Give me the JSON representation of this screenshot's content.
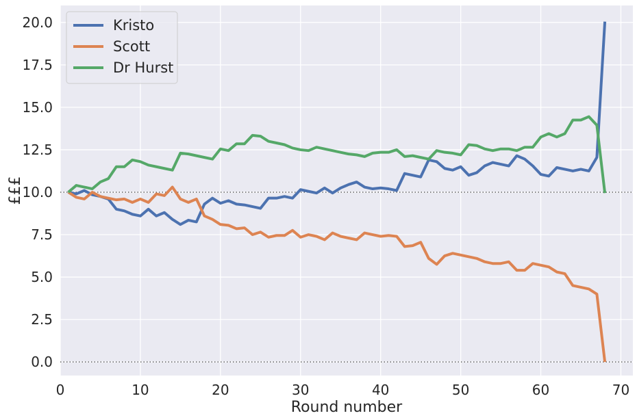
{
  "chart_data": {
    "type": "line",
    "title": "",
    "xlabel": "Round number",
    "ylabel": "£££",
    "xlim": [
      0,
      71.5
    ],
    "ylim": [
      -0.8,
      21
    ],
    "xticks": [
      0,
      10,
      20,
      30,
      40,
      50,
      60,
      70
    ],
    "yticks": [
      0.0,
      2.5,
      5.0,
      7.5,
      10.0,
      12.5,
      15.0,
      17.5,
      20.0
    ],
    "ytick_labels": [
      "0.0",
      "2.5",
      "5.0",
      "7.5",
      "10.0",
      "12.5",
      "15.0",
      "17.5",
      "20.0"
    ],
    "reference_lines": [
      0,
      10
    ],
    "grid": true,
    "background": "#eaeaf2",
    "legend_position": "top-left",
    "x": [
      1,
      2,
      3,
      4,
      5,
      6,
      7,
      8,
      9,
      10,
      11,
      12,
      13,
      14,
      15,
      16,
      17,
      18,
      19,
      20,
      21,
      22,
      23,
      24,
      25,
      26,
      27,
      28,
      29,
      30,
      31,
      32,
      33,
      34,
      35,
      36,
      37,
      38,
      39,
      40,
      41,
      42,
      43,
      44,
      45,
      46,
      47,
      48,
      49,
      50,
      51,
      52,
      53,
      54,
      55,
      56,
      57,
      58,
      59,
      60,
      61,
      62,
      63,
      64,
      65,
      66,
      67,
      68
    ],
    "series": [
      {
        "name": "Kristo",
        "color": "#4c72b0",
        "values": [
          10.0,
          9.9,
          10.1,
          9.85,
          9.75,
          9.6,
          9.0,
          8.9,
          8.7,
          8.6,
          9.0,
          8.6,
          8.8,
          8.4,
          8.1,
          8.35,
          8.25,
          9.3,
          9.65,
          9.35,
          9.5,
          9.3,
          9.25,
          9.15,
          9.05,
          9.65,
          9.65,
          9.75,
          9.65,
          10.15,
          10.05,
          9.95,
          10.25,
          9.95,
          10.25,
          10.45,
          10.6,
          10.3,
          10.2,
          10.25,
          10.2,
          10.1,
          11.1,
          11.0,
          10.9,
          11.9,
          11.8,
          11.4,
          11.3,
          11.5,
          11.0,
          11.15,
          11.55,
          11.75,
          11.65,
          11.55,
          12.15,
          11.95,
          11.55,
          11.05,
          10.95,
          11.45,
          11.35,
          11.25,
          11.35,
          11.25,
          12.05,
          20.05
        ]
      },
      {
        "name": "Scott",
        "color": "#dd8452",
        "values": [
          10.0,
          9.7,
          9.6,
          10.0,
          9.75,
          9.65,
          9.55,
          9.6,
          9.4,
          9.6,
          9.4,
          9.9,
          9.8,
          10.3,
          9.6,
          9.4,
          9.6,
          8.6,
          8.4,
          8.1,
          8.05,
          7.85,
          7.9,
          7.5,
          7.65,
          7.35,
          7.45,
          7.45,
          7.75,
          7.35,
          7.5,
          7.4,
          7.2,
          7.6,
          7.4,
          7.3,
          7.2,
          7.6,
          7.5,
          7.4,
          7.45,
          7.4,
          6.8,
          6.85,
          7.05,
          6.1,
          5.75,
          6.25,
          6.4,
          6.3,
          6.2,
          6.1,
          5.9,
          5.8,
          5.8,
          5.9,
          5.4,
          5.4,
          5.8,
          5.7,
          5.6,
          5.3,
          5.2,
          4.5,
          4.4,
          4.3,
          4.0,
          0.0
        ]
      },
      {
        "name": "Dr Hurst",
        "color": "#55a868",
        "values": [
          10.0,
          10.4,
          10.3,
          10.2,
          10.6,
          10.8,
          11.5,
          11.5,
          11.9,
          11.8,
          11.6,
          11.5,
          11.4,
          11.3,
          12.3,
          12.25,
          12.15,
          12.05,
          11.95,
          12.55,
          12.45,
          12.85,
          12.85,
          13.35,
          13.3,
          13.0,
          12.9,
          12.8,
          12.6,
          12.5,
          12.45,
          12.65,
          12.55,
          12.45,
          12.35,
          12.25,
          12.2,
          12.1,
          12.3,
          12.35,
          12.35,
          12.5,
          12.1,
          12.15,
          12.05,
          11.95,
          12.45,
          12.35,
          12.3,
          12.2,
          12.8,
          12.75,
          12.55,
          12.45,
          12.55,
          12.55,
          12.45,
          12.65,
          12.65,
          13.25,
          13.45,
          13.25,
          13.45,
          14.25,
          14.25,
          14.45,
          13.95,
          9.95
        ]
      }
    ]
  }
}
